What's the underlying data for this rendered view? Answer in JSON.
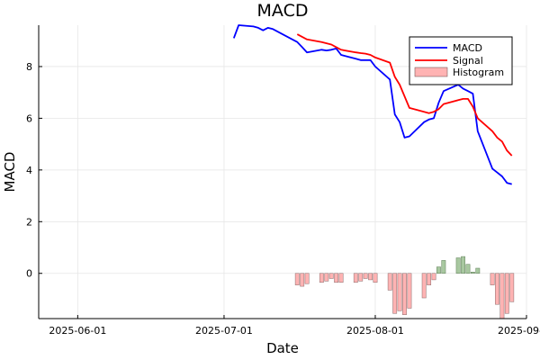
{
  "chart_data": {
    "type": "line",
    "title": "MACD",
    "xlabel": "Date",
    "ylabel": "MACD",
    "x_ticks": [
      "2025-06-01",
      "2025-07-01",
      "2025-08-01",
      "2025-09-01"
    ],
    "y_ticks": [
      0,
      2,
      4,
      6,
      8
    ],
    "xlim": [
      "2025-05-24",
      "2025-09-01"
    ],
    "ylim": [
      -1.75,
      9.6
    ],
    "grid": true,
    "legend_position": "top-right",
    "colors": {
      "macd": "#0000ff",
      "signal": "#ff0000",
      "hist_neg": "#ffb3b3",
      "hist_pos": "#a8c8a0"
    },
    "legend": [
      {
        "label": "MACD",
        "kind": "line",
        "color": "#0000ff"
      },
      {
        "label": "Signal",
        "kind": "line",
        "color": "#ff0000"
      },
      {
        "label": "Histogram",
        "kind": "bar",
        "color": "#ffb3b3"
      }
    ],
    "series": [
      {
        "name": "MACD",
        "x": [
          "2025-07-03",
          "2025-07-04",
          "2025-07-07",
          "2025-07-08",
          "2025-07-09",
          "2025-07-10",
          "2025-07-11",
          "2025-07-14",
          "2025-07-15",
          "2025-07-16",
          "2025-07-17",
          "2025-07-18",
          "2025-07-21",
          "2025-07-22",
          "2025-07-23",
          "2025-07-24",
          "2025-07-25",
          "2025-07-28",
          "2025-07-29",
          "2025-07-30",
          "2025-07-31",
          "2025-08-01",
          "2025-08-04",
          "2025-08-05",
          "2025-08-06",
          "2025-08-07",
          "2025-08-08",
          "2025-08-11",
          "2025-08-12",
          "2025-08-13",
          "2025-08-14",
          "2025-08-15",
          "2025-08-18",
          "2025-08-19",
          "2025-08-20",
          "2025-08-21",
          "2025-08-22",
          "2025-08-25",
          "2025-08-26",
          "2025-08-27",
          "2025-08-28",
          "2025-08-29"
        ],
        "values": [
          9.1,
          9.6,
          9.55,
          9.5,
          9.4,
          9.5,
          9.45,
          9.15,
          9.05,
          8.95,
          8.75,
          8.55,
          8.65,
          8.62,
          8.65,
          8.7,
          8.45,
          8.3,
          8.25,
          8.25,
          8.25,
          8.0,
          7.5,
          6.15,
          5.85,
          5.25,
          5.3,
          5.85,
          5.95,
          6.0,
          6.6,
          7.05,
          7.3,
          7.15,
          7.05,
          6.95,
          5.5,
          4.05,
          3.9,
          3.75,
          3.5,
          3.45
        ]
      },
      {
        "name": "Signal",
        "x": [
          "2025-07-16",
          "2025-07-17",
          "2025-07-18",
          "2025-07-21",
          "2025-07-22",
          "2025-07-23",
          "2025-07-24",
          "2025-07-25",
          "2025-07-28",
          "2025-07-29",
          "2025-07-30",
          "2025-07-31",
          "2025-08-01",
          "2025-08-04",
          "2025-08-05",
          "2025-08-06",
          "2025-08-07",
          "2025-08-08",
          "2025-08-11",
          "2025-08-12",
          "2025-08-13",
          "2025-08-14",
          "2025-08-15",
          "2025-08-18",
          "2025-08-19",
          "2025-08-20",
          "2025-08-21",
          "2025-08-22",
          "2025-08-25",
          "2025-08-26",
          "2025-08-27",
          "2025-08-28",
          "2025-08-29"
        ],
        "values": [
          9.25,
          9.15,
          9.05,
          8.95,
          8.9,
          8.85,
          8.75,
          8.65,
          8.55,
          8.52,
          8.5,
          8.45,
          8.35,
          8.15,
          7.6,
          7.3,
          6.85,
          6.4,
          6.25,
          6.2,
          6.25,
          6.35,
          6.55,
          6.7,
          6.75,
          6.75,
          6.45,
          6.0,
          5.5,
          5.25,
          5.1,
          4.75,
          4.55
        ]
      },
      {
        "name": "Histogram",
        "kind": "bar",
        "x": [
          "2025-07-16",
          "2025-07-17",
          "2025-07-18",
          "2025-07-21",
          "2025-07-22",
          "2025-07-23",
          "2025-07-24",
          "2025-07-25",
          "2025-07-28",
          "2025-07-29",
          "2025-07-30",
          "2025-07-31",
          "2025-08-01",
          "2025-08-04",
          "2025-08-05",
          "2025-08-06",
          "2025-08-07",
          "2025-08-08",
          "2025-08-11",
          "2025-08-12",
          "2025-08-13",
          "2025-08-14",
          "2025-08-15",
          "2025-08-18",
          "2025-08-19",
          "2025-08-20",
          "2025-08-21",
          "2025-08-22",
          "2025-08-25",
          "2025-08-26",
          "2025-08-27",
          "2025-08-28",
          "2025-08-29"
        ],
        "values": [
          -0.45,
          -0.5,
          -0.4,
          -0.35,
          -0.3,
          -0.2,
          -0.35,
          -0.35,
          -0.35,
          -0.3,
          -0.2,
          -0.25,
          -0.35,
          -0.65,
          -1.55,
          -1.45,
          -1.6,
          -1.35,
          -0.95,
          -0.45,
          -0.25,
          0.25,
          0.5,
          0.6,
          0.65,
          0.35,
          0.05,
          0.2,
          -0.45,
          -1.2,
          -1.75,
          -1.55,
          -1.1
        ]
      }
    ]
  }
}
